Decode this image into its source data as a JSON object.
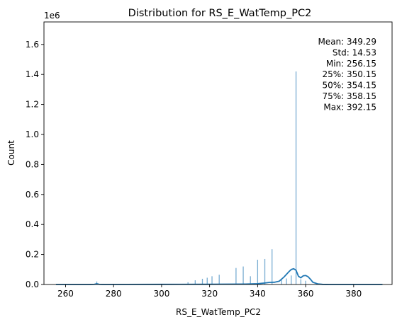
{
  "chart_data": {
    "type": "histogram",
    "title": "Distribution for RS_E_WatTemp_PC2",
    "xlabel": "RS_E_WatTemp_PC2",
    "ylabel": "Count",
    "y_scale_label": "1e6",
    "xlim": [
      251,
      396
    ],
    "ylim": [
      0,
      1750000
    ],
    "x_ticks": [
      260,
      280,
      300,
      320,
      340,
      360,
      380
    ],
    "y_ticks": [
      0,
      200000,
      400000,
      600000,
      800000,
      1000000,
      1200000,
      1400000,
      1600000
    ],
    "y_tick_labels": [
      "0.0",
      "0.2",
      "0.4",
      "0.6",
      "0.8",
      "1.0",
      "1.2",
      "1.4",
      "1.6"
    ],
    "bar_color": "#1f77b4",
    "kde_color": "#1f77b4",
    "bars": [
      {
        "x": 273,
        "count": 20000
      },
      {
        "x": 311,
        "count": 15000
      },
      {
        "x": 314,
        "count": 28000
      },
      {
        "x": 317,
        "count": 38000
      },
      {
        "x": 319,
        "count": 45000
      },
      {
        "x": 321,
        "count": 55000
      },
      {
        "x": 324,
        "count": 65000
      },
      {
        "x": 331,
        "count": 110000
      },
      {
        "x": 334,
        "count": 120000
      },
      {
        "x": 337,
        "count": 55000
      },
      {
        "x": 340,
        "count": 165000
      },
      {
        "x": 343,
        "count": 170000
      },
      {
        "x": 346,
        "count": 235000
      },
      {
        "x": 350,
        "count": 30000
      },
      {
        "x": 352,
        "count": 40000
      },
      {
        "x": 354,
        "count": 60000
      },
      {
        "x": 356,
        "count": 1420000
      },
      {
        "x": 358,
        "count": 35000
      },
      {
        "x": 360,
        "count": 25000
      }
    ],
    "kde": {
      "x": [
        256,
        265,
        270,
        272,
        273,
        274,
        276,
        285,
        300,
        320,
        335,
        340,
        343,
        345,
        347,
        349,
        351,
        353,
        354,
        355,
        356,
        357,
        358,
        359,
        360,
        361,
        362,
        363,
        365,
        367,
        370,
        380,
        392
      ],
      "y": [
        0,
        0,
        0,
        1000,
        5000,
        1000,
        0,
        500,
        800,
        1500,
        3000,
        5000,
        10000,
        14000,
        15000,
        22000,
        50000,
        85000,
        100000,
        105000,
        95000,
        55000,
        45000,
        58000,
        60000,
        52000,
        35000,
        15000,
        4000,
        1000,
        0,
        0,
        0
      ]
    },
    "stats": [
      {
        "label": "Mean",
        "text": "Mean: 349.29"
      },
      {
        "label": "Std",
        "text": "Std: 14.53"
      },
      {
        "label": "Min",
        "text": "Min: 256.15"
      },
      {
        "label": "25%",
        "text": "25%: 350.15"
      },
      {
        "label": "50%",
        "text": "50%: 354.15"
      },
      {
        "label": "75%",
        "text": "75%: 358.15"
      },
      {
        "label": "Max",
        "text": "Max: 392.15"
      }
    ]
  }
}
